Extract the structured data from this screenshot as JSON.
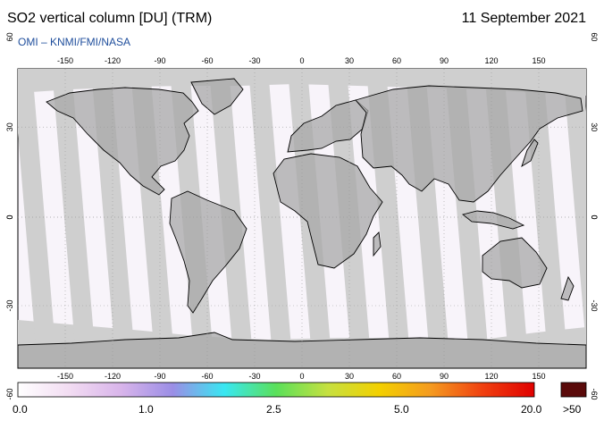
{
  "header": {
    "title": "SO2 vertical column [DU] (TRM)",
    "date": "11 September 2021",
    "credit": "OMI  –  KNMI/FMI/NASA"
  },
  "map": {
    "lon_ticks": [
      "-150",
      "-120",
      "-90",
      "-60",
      "-30",
      "0",
      "30",
      "60",
      "90",
      "120",
      "150"
    ],
    "lat_ticks": [
      "60",
      "30",
      "0",
      "-30",
      "-60"
    ],
    "colors": {
      "frame_bg": "#f8f4fa",
      "land": "#a8a8a8",
      "no_data": "#cfcfcf",
      "coast": "#000000"
    }
  },
  "colorbar": {
    "labels": [
      "0.0",
      "1.0",
      "2.5",
      "5.0",
      "20.0"
    ],
    "overflow_label": ">50",
    "overflow_color": "#5a0a0a",
    "gradient": [
      "#ffffff",
      "#f2dcf2",
      "#d8b4ea",
      "#9b8ee6",
      "#38e7f2",
      "#5ae05a",
      "#c6e040",
      "#f3d000",
      "#f49a20",
      "#f04010",
      "#e00000"
    ]
  }
}
